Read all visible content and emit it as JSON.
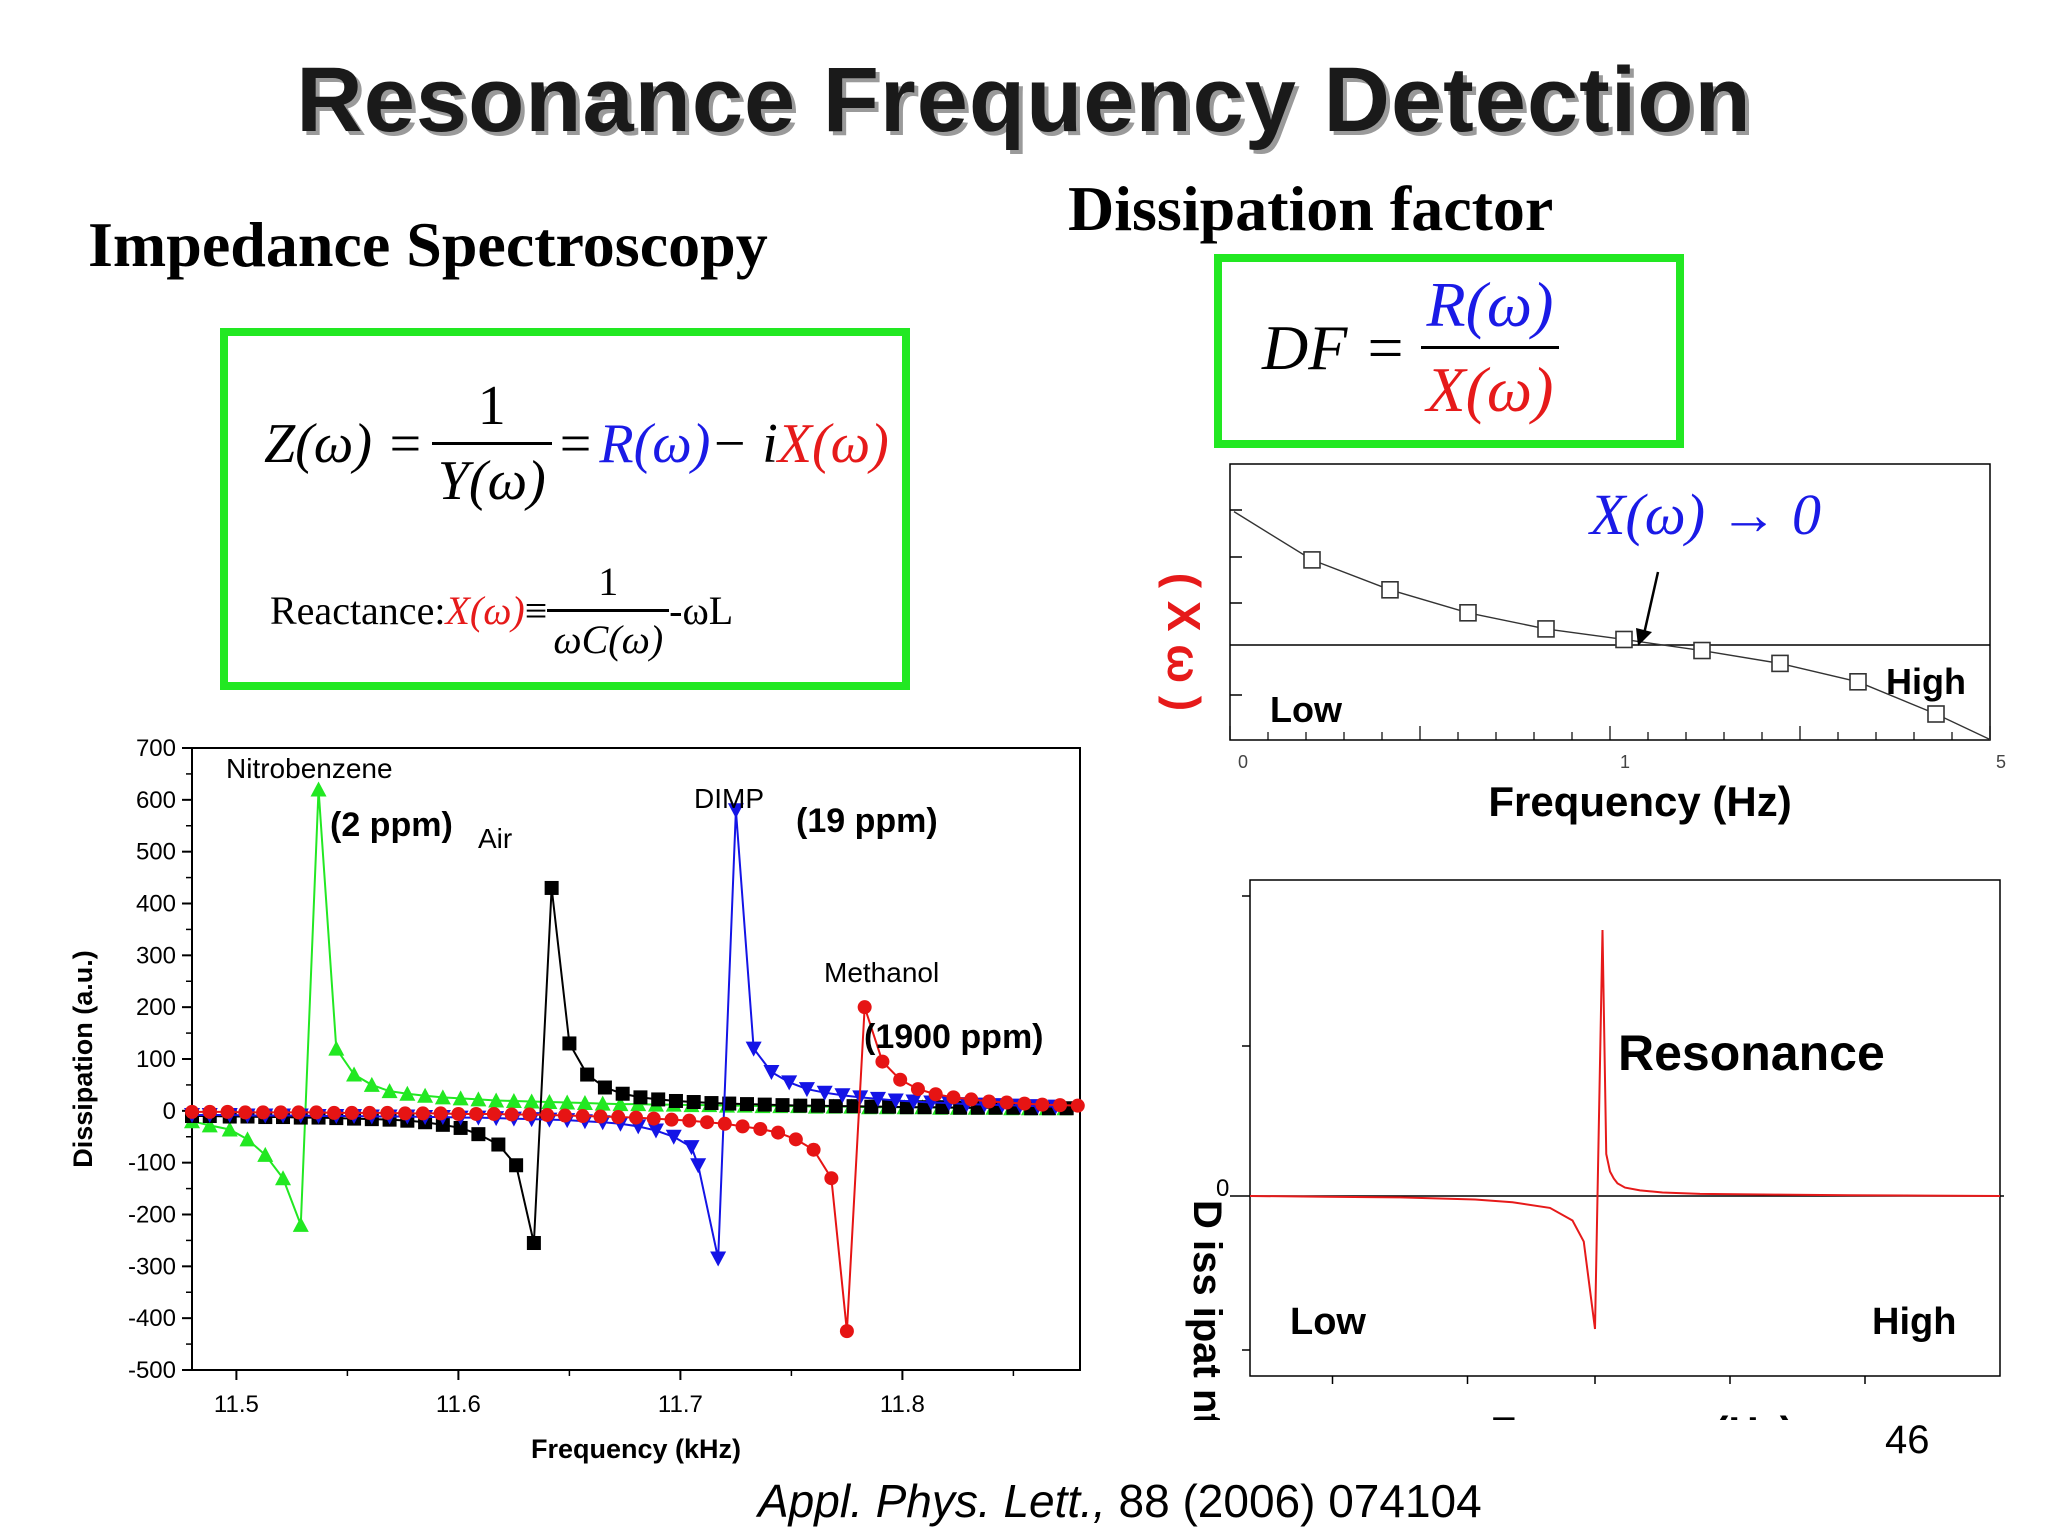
{
  "slide": {
    "title": "Resonance Frequency Detection",
    "page_number": "46",
    "reference_journal": "Appl. Phys. Lett.,",
    "reference_rest": " 88 (2006) 074104"
  },
  "impedance": {
    "heading": "Impedance Spectroscopy",
    "eq_lhs": "Z(ω) =",
    "eq_num": "1",
    "eq_den": "Y(ω)",
    "eq_eq": "=",
    "eq_R": "R(ω)",
    "eq_minus_i": " − i",
    "eq_X": "X(ω)",
    "reactance_label": "Reactance: ",
    "reactance_X": "X(ω)",
    "reactance_equiv": " ≡ ",
    "reactance_num": "1",
    "reactance_den": "ωC(ω)",
    "reactance_tail": " -ωL"
  },
  "dissipation": {
    "heading": "Dissipation factor",
    "df_lhs": "DF =",
    "df_num": "R(ω)",
    "df_den": "X(ω)"
  },
  "xw_plot": {
    "ylabel": "( X ω )",
    "annotation": "X(ω) → 0",
    "low_label": "Low",
    "high_label": "High",
    "xlabel": "Frequency (Hz)",
    "tick_left": "0",
    "tick_mid": "1",
    "tick_right": "5"
  },
  "resonance_plot": {
    "ylabel_fragment": "D iss ipat nt",
    "zero_label": "0",
    "resonance_label": "Resonance",
    "low_label": "Low",
    "high_label": "High",
    "xlabel": "Frequency (Hz)"
  },
  "colors": {
    "nitrobenzene": "#22e822",
    "air": "#000000",
    "dimp": "#1414e6",
    "methanol": "#e61414",
    "box_border": "#22e822"
  },
  "chart_data": [
    {
      "type": "scatter",
      "title": "",
      "xlabel": "Frequency (kHz)",
      "ylabel": "Dissipation (a.u.)",
      "xlim": [
        11.48,
        11.88
      ],
      "ylim": [
        -500,
        700
      ],
      "xticks": [
        "11.5",
        "11.6",
        "11.7",
        "11.8"
      ],
      "yticks": [
        "-500",
        "-400",
        "-300",
        "-200",
        "-100",
        "0",
        "100",
        "200",
        "300",
        "400",
        "500",
        "600",
        "700"
      ],
      "grid": false,
      "annotations": [
        {
          "text": "Nitrobenzene",
          "bold": false
        },
        {
          "text": "(2 ppm)",
          "bold": true
        },
        {
          "text": "Air",
          "bold": false
        },
        {
          "text": "DIMP",
          "bold": false
        },
        {
          "text": "(19 ppm)",
          "bold": true
        },
        {
          "text": "Methanol",
          "bold": false
        },
        {
          "text": "(1900 ppm)",
          "bold": true
        }
      ],
      "series": [
        {
          "name": "Nitrobenzene",
          "marker": "triangle-up",
          "x": [
            11.48,
            11.488,
            11.497,
            11.505,
            11.513,
            11.521,
            11.529,
            11.537,
            11.545,
            11.553,
            11.561,
            11.569,
            11.577,
            11.585,
            11.593,
            11.601,
            11.609,
            11.617,
            11.625,
            11.633,
            11.641,
            11.649,
            11.657,
            11.665,
            11.673,
            11.681,
            11.689,
            11.697,
            11.705,
            11.713,
            11.721,
            11.729,
            11.737,
            11.745,
            11.753,
            11.761,
            11.769,
            11.777,
            11.785,
            11.793,
            11.801,
            11.809,
            11.817,
            11.825,
            11.833,
            11.841,
            11.849,
            11.857,
            11.865,
            11.873
          ],
          "y": [
            -20,
            -28,
            -36,
            -55,
            -85,
            -130,
            -220,
            620,
            120,
            70,
            50,
            38,
            33,
            29,
            26,
            24,
            22,
            20,
            19,
            18,
            17,
            16,
            15,
            14,
            13,
            13,
            12,
            12,
            11,
            11,
            10,
            10,
            9,
            9,
            9,
            8,
            8,
            8,
            7,
            7,
            7,
            7,
            6,
            6,
            6,
            6,
            5,
            5,
            5,
            5
          ]
        },
        {
          "name": "Air",
          "marker": "square",
          "x": [
            11.48,
            11.488,
            11.497,
            11.505,
            11.513,
            11.521,
            11.529,
            11.537,
            11.545,
            11.553,
            11.561,
            11.569,
            11.577,
            11.585,
            11.593,
            11.601,
            11.609,
            11.618,
            11.626,
            11.634,
            11.642,
            11.65,
            11.658,
            11.666,
            11.674,
            11.682,
            11.69,
            11.698,
            11.706,
            11.714,
            11.722,
            11.73,
            11.738,
            11.746,
            11.754,
            11.762,
            11.77,
            11.778,
            11.786,
            11.794,
            11.802,
            11.81,
            11.818,
            11.826,
            11.834,
            11.842,
            11.85,
            11.858,
            11.866,
            11.874
          ],
          "y": [
            -10,
            -10,
            -11,
            -11,
            -12,
            -12,
            -13,
            -13,
            -14,
            -15,
            -16,
            -17,
            -19,
            -22,
            -27,
            -33,
            -45,
            -65,
            -105,
            -255,
            430,
            130,
            70,
            45,
            33,
            26,
            22,
            19,
            17,
            15,
            14,
            13,
            12,
            11,
            10,
            10,
            9,
            9,
            8,
            8,
            7,
            7,
            7,
            6,
            6,
            6,
            6,
            5,
            5,
            5
          ]
        },
        {
          "name": "DIMP",
          "marker": "triangle-down",
          "x": [
            11.48,
            11.488,
            11.497,
            11.505,
            11.513,
            11.521,
            11.529,
            11.537,
            11.545,
            11.553,
            11.561,
            11.569,
            11.577,
            11.585,
            11.593,
            11.601,
            11.609,
            11.617,
            11.625,
            11.633,
            11.641,
            11.649,
            11.657,
            11.665,
            11.673,
            11.681,
            11.689,
            11.697,
            11.705,
            11.708,
            11.717,
            11.725,
            11.733,
            11.741,
            11.749,
            11.757,
            11.765,
            11.773,
            11.781,
            11.789,
            11.797,
            11.805,
            11.813,
            11.821,
            11.829,
            11.837,
            11.845,
            11.853,
            11.861,
            11.869
          ],
          "y": [
            -8,
            -8,
            -8,
            -9,
            -9,
            -9,
            -9,
            -10,
            -10,
            -10,
            -11,
            -11,
            -11,
            -12,
            -12,
            -13,
            -13,
            -14,
            -15,
            -16,
            -17,
            -18,
            -20,
            -22,
            -25,
            -30,
            -38,
            -50,
            -70,
            -105,
            -285,
            580,
            120,
            75,
            55,
            42,
            35,
            30,
            26,
            23,
            20,
            18,
            16,
            15,
            13,
            12,
            11,
            10,
            9,
            8
          ]
        },
        {
          "name": "Methanol",
          "marker": "circle",
          "x": [
            11.48,
            11.488,
            11.496,
            11.504,
            11.512,
            11.52,
            11.528,
            11.536,
            11.544,
            11.552,
            11.56,
            11.568,
            11.576,
            11.584,
            11.592,
            11.6,
            11.608,
            11.616,
            11.624,
            11.632,
            11.64,
            11.648,
            11.656,
            11.664,
            11.672,
            11.68,
            11.688,
            11.696,
            11.704,
            11.712,
            11.72,
            11.728,
            11.736,
            11.744,
            11.752,
            11.76,
            11.768,
            11.775,
            11.783,
            11.791,
            11.799,
            11.807,
            11.815,
            11.823,
            11.831,
            11.839,
            11.847,
            11.855,
            11.863,
            11.871,
            11.879
          ],
          "y": [
            -2,
            -2,
            -2,
            -3,
            -3,
            -3,
            -3,
            -3,
            -4,
            -4,
            -4,
            -4,
            -5,
            -5,
            -5,
            -6,
            -6,
            -6,
            -7,
            -7,
            -8,
            -9,
            -10,
            -11,
            -12,
            -13,
            -15,
            -17,
            -19,
            -22,
            -25,
            -30,
            -35,
            -42,
            -55,
            -75,
            -130,
            -425,
            200,
            95,
            60,
            42,
            32,
            26,
            22,
            18,
            16,
            14,
            12,
            11,
            10
          ]
        }
      ]
    },
    {
      "type": "line",
      "title": "",
      "xlabel": "Frequency (Hz)",
      "ylabel": "( X ω )",
      "marker": "open-square",
      "x": [
        0,
        1,
        2,
        3,
        4,
        5,
        6,
        7,
        8,
        9,
        10
      ],
      "y": [
        2.9,
        1.85,
        1.2,
        0.7,
        0.35,
        0.12,
        -0.12,
        -0.4,
        -0.8,
        -1.5,
        -2.3
      ]
    },
    {
      "type": "line",
      "title": "",
      "xlabel": "Frequency (Hz)",
      "x": [
        0,
        1,
        2,
        3,
        3.5,
        4,
        4.3,
        4.45,
        4.6,
        4.7,
        4.75,
        4.8,
        4.85,
        4.9,
        5.0,
        5.2,
        5.5,
        6,
        7,
        8,
        9,
        10
      ],
      "y": [
        0,
        -0.01,
        -0.02,
        -0.05,
        -0.09,
        -0.17,
        -0.35,
        -0.65,
        -1.9,
        3.8,
        0.6,
        0.35,
        0.25,
        0.18,
        0.12,
        0.08,
        0.05,
        0.03,
        0.02,
        0.01,
        0.005,
        0
      ]
    }
  ]
}
